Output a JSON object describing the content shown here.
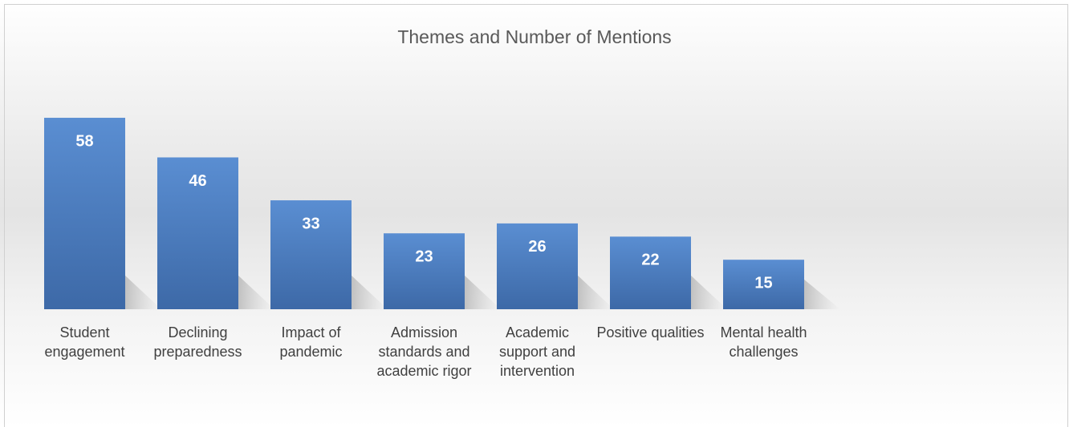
{
  "chart_data": {
    "type": "bar",
    "title": "Themes and Number of Mentions",
    "categories": [
      "Student engagement",
      "Declining preparedness",
      "Impact of pandemic",
      "Admission standards and academic rigor",
      "Academic support and intervention",
      "Positive qualities",
      "Mental health challenges"
    ],
    "values": [
      58,
      46,
      33,
      23,
      26,
      22,
      15
    ],
    "color": "#4a7cc0"
  }
}
